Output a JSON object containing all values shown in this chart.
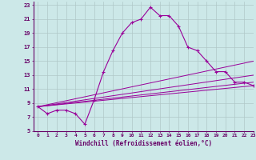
{
  "xlabel": "Windchill (Refroidissement éolien,°C)",
  "xlim": [
    -0.5,
    23
  ],
  "ylim": [
    5,
    23.5
  ],
  "xticks": [
    0,
    1,
    2,
    3,
    4,
    5,
    6,
    7,
    8,
    9,
    10,
    11,
    12,
    13,
    14,
    15,
    16,
    17,
    18,
    19,
    20,
    21,
    22,
    23
  ],
  "yticks": [
    5,
    7,
    9,
    11,
    13,
    15,
    17,
    19,
    21,
    23
  ],
  "background_color": "#cce8e8",
  "line_color": "#990099",
  "grid_color": "#b0c8c8",
  "main_curve": {
    "x": [
      0,
      1,
      2,
      3,
      4,
      5,
      6,
      7,
      8,
      9,
      10,
      11,
      12,
      13,
      14,
      15,
      16,
      17,
      18,
      19,
      20,
      21,
      22,
      23
    ],
    "y": [
      8.5,
      7.5,
      8.0,
      8.0,
      7.5,
      6.0,
      9.5,
      13.5,
      16.5,
      19.0,
      20.5,
      21.0,
      22.7,
      21.5,
      21.5,
      20.0,
      17.0,
      16.5,
      15.0,
      13.5,
      13.5,
      12.0,
      12.0,
      11.5
    ]
  },
  "fan_lines": [
    {
      "x": [
        0,
        23
      ],
      "y": [
        8.5,
        11.5
      ]
    },
    {
      "x": [
        0,
        23
      ],
      "y": [
        8.5,
        12.0
      ]
    },
    {
      "x": [
        0,
        23
      ],
      "y": [
        8.5,
        13.0
      ]
    },
    {
      "x": [
        0,
        23
      ],
      "y": [
        8.5,
        15.0
      ]
    }
  ]
}
